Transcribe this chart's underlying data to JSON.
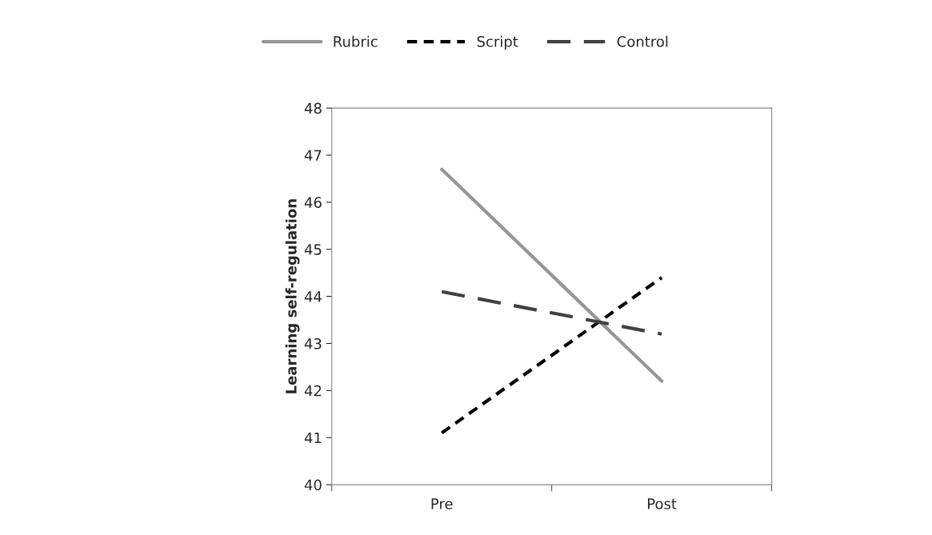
{
  "chart_data": {
    "type": "line",
    "ylabel": "Learning self-regulation",
    "categories": [
      "Pre",
      "Post"
    ],
    "series": [
      {
        "name": "Rubric",
        "color": "#969696",
        "values": [
          46.7,
          42.2
        ],
        "line_style": "solid"
      },
      {
        "name": "Script",
        "color": "#000000",
        "values": [
          41.1,
          44.4
        ],
        "line_style": "dotted"
      },
      {
        "name": "Control",
        "color": "#404040",
        "values": [
          44.1,
          43.2
        ],
        "line_style": "dashed"
      }
    ],
    "ylim": [
      40,
      48
    ],
    "yticks": [
      40,
      41,
      42,
      43,
      44,
      45,
      46,
      47,
      48
    ],
    "grid": false,
    "legend": "top",
    "marker": "none"
  }
}
